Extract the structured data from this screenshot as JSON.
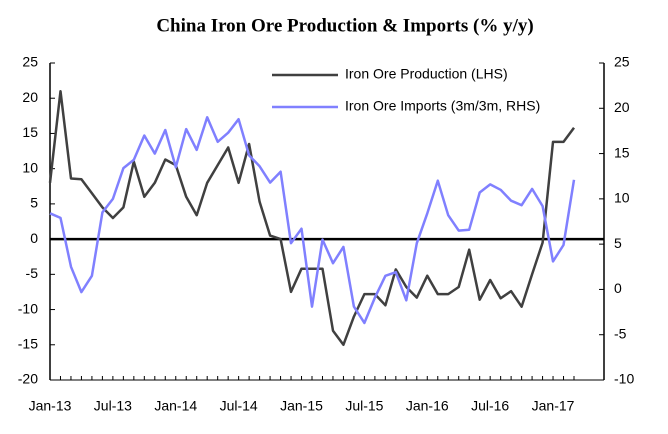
{
  "chart_data": {
    "type": "line",
    "title": "China Iron Ore Production & Imports (% y/y)",
    "categories": [
      "Jan-13",
      null,
      null,
      null,
      null,
      null,
      "Jul-13",
      null,
      null,
      null,
      null,
      null,
      "Jan-14",
      null,
      null,
      null,
      null,
      null,
      "Jul-14",
      null,
      null,
      null,
      null,
      null,
      "Jan-15",
      null,
      null,
      null,
      null,
      null,
      "Jul-15",
      null,
      null,
      null,
      null,
      null,
      "Jan-16",
      null,
      null,
      null,
      null,
      null,
      "Jul-16",
      null,
      null,
      null,
      null,
      null,
      "Jan-17",
      null,
      null
    ],
    "series": [
      {
        "name": "Iron Ore Production (LHS)",
        "color": "#404040",
        "axis": "y",
        "values": [
          8,
          21,
          8.6,
          8.5,
          6.5,
          4.5,
          3,
          4.5,
          11,
          6,
          8,
          11.3,
          10.5,
          6,
          3.4,
          8,
          10.5,
          13,
          8,
          13.5,
          5.3,
          0.5,
          0,
          -7.5,
          -4.2,
          -4.2,
          -4.2,
          -13,
          -15,
          -11,
          -7.8,
          -7.8,
          -9.4,
          -4.3,
          -6.8,
          -8.3,
          -5.2,
          -7.8,
          -7.8,
          -6.8,
          -1.5,
          -8.6,
          -5.8,
          -8.4,
          -7.4,
          -9.6,
          -5,
          -0.5,
          13.8,
          13.8,
          15.8
        ]
      },
      {
        "name": "Iron Ore Imports (3m/3m, RHS)",
        "color": "#8080ff",
        "axis": "y2",
        "values": [
          8.4,
          7.9,
          2.5,
          -0.3,
          1.5,
          8.5,
          10,
          13.4,
          14.3,
          17,
          15,
          17.6,
          13.5,
          17.7,
          15.4,
          19,
          16.3,
          17.3,
          18.8,
          14.8,
          13.6,
          11.8,
          13,
          5.1,
          6.7,
          -1.9,
          5.5,
          2.9,
          4.7,
          -1.9,
          -3.7,
          -0.9,
          1.5,
          1.9,
          -1.2,
          5.1,
          8.4,
          12,
          8.2,
          6.5,
          6.6,
          10.7,
          11.6,
          11,
          9.8,
          9.3,
          11.1,
          9.2,
          3.1,
          4.9,
          12.1
        ]
      }
    ],
    "ylim": [
      -20,
      25
    ],
    "yticks": [
      -20,
      -15,
      -10,
      -5,
      0,
      5,
      10,
      15,
      20,
      25
    ],
    "y2lim": [
      -10,
      25
    ],
    "y2ticks": [
      -10,
      -5,
      0,
      5,
      10,
      15,
      20,
      25
    ],
    "hline": 0,
    "legend": "top"
  }
}
